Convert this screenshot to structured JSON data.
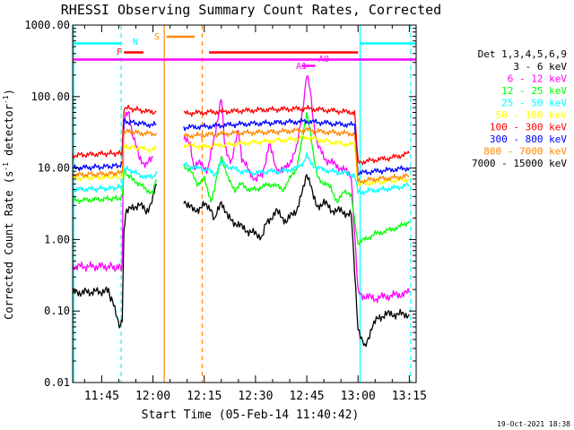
{
  "chart_data": {
    "type": "line",
    "title": "RHESSI Observing Summary Count Rates, Corrected",
    "xlabel": "Start Time (05-Feb-14 11:40:42)",
    "ylabel": "Corrected Count Rate (s",
    "ylabel_sup": "-1",
    "ylabel_tail": " detector",
    "ylabel_sup2": "-1",
    "ylabel_end": ")",
    "y_scale": "log",
    "ylim": [
      0.01,
      1000
    ],
    "xlim_minutes": [
      -3.5,
      97
    ],
    "x_ticks": [
      {
        "label": "11:45",
        "m": 5
      },
      {
        "label": "12:00",
        "m": 20
      },
      {
        "label": "12:15",
        "m": 35
      },
      {
        "label": "12:30",
        "m": 50
      },
      {
        "label": "12:45",
        "m": 65
      },
      {
        "label": "13:00",
        "m": 80
      },
      {
        "label": "13:15",
        "m": 95
      }
    ],
    "y_ticks": [
      {
        "label": "0.01",
        "v": 0.01
      },
      {
        "label": "0.10",
        "v": 0.1
      },
      {
        "label": "1.00",
        "v": 1
      },
      {
        "label": "10.00",
        "v": 10
      },
      {
        "label": "100.00",
        "v": 100
      },
      {
        "label": "1000.00",
        "v": 1000
      }
    ],
    "legend_title": "Det 1,3,4,5,6,9",
    "legend_position": "right",
    "series": [
      {
        "name": "3 - 6 keV",
        "color": "#000000",
        "pts": [
          [
            -3.5,
            0.18
          ],
          [
            7,
            0.19
          ],
          [
            8.5,
            0.12
          ],
          [
            10.5,
            0.06
          ],
          [
            11,
            0.08
          ],
          [
            11.5,
            1.2
          ],
          [
            12,
            2.5
          ],
          [
            14,
            2.7
          ],
          [
            16,
            3.2
          ],
          [
            18,
            2.4
          ],
          [
            19,
            3.0
          ],
          [
            20,
            3.8
          ],
          [
            21,
            6
          ],
          [
            22,
            null
          ],
          [
            29,
            3.6
          ],
          [
            32,
            2.5
          ],
          [
            35,
            3.0
          ],
          [
            37,
            2.8
          ],
          [
            38,
            1.8
          ],
          [
            40,
            3.5
          ],
          [
            42,
            2.0
          ],
          [
            45,
            1.6
          ],
          [
            48,
            1.3
          ],
          [
            50,
            1.2
          ],
          [
            52,
            1.1
          ],
          [
            53,
            1.6
          ],
          [
            56,
            2.5
          ],
          [
            59,
            1.8
          ],
          [
            62,
            2.6
          ],
          [
            64,
            5
          ],
          [
            65,
            8.5
          ],
          [
            66,
            6.5
          ],
          [
            67,
            3.8
          ],
          [
            68,
            2.8
          ],
          [
            70,
            3.4
          ],
          [
            72,
            2.6
          ],
          [
            75,
            2.5
          ],
          [
            78,
            2.2
          ],
          [
            80,
            0.06
          ],
          [
            81,
            0.04
          ],
          [
            82,
            0.03
          ],
          [
            84,
            0.06
          ],
          [
            86,
            0.08
          ],
          [
            88,
            0.09
          ],
          [
            92,
            0.09
          ],
          [
            95,
            0.09
          ]
        ]
      },
      {
        "name": "6 - 12 keV",
        "color": "#ff00ff",
        "pts": [
          [
            -3.5,
            0.42
          ],
          [
            7,
            0.42
          ],
          [
            10.5,
            0.4
          ],
          [
            11,
            0.45
          ],
          [
            11.5,
            50
          ],
          [
            13,
            60
          ],
          [
            14,
            30
          ],
          [
            16,
            14
          ],
          [
            18,
            11
          ],
          [
            20,
            14
          ],
          [
            22,
            null
          ],
          [
            29,
            25
          ],
          [
            31,
            22
          ],
          [
            32,
            10
          ],
          [
            34,
            12
          ],
          [
            36,
            9
          ],
          [
            38,
            28
          ],
          [
            40,
            95
          ],
          [
            41,
            20
          ],
          [
            43,
            12
          ],
          [
            45,
            35
          ],
          [
            46,
            14
          ],
          [
            48,
            9
          ],
          [
            50,
            7
          ],
          [
            52,
            8
          ],
          [
            54,
            22
          ],
          [
            56,
            10
          ],
          [
            58,
            9
          ],
          [
            60,
            12
          ],
          [
            62,
            18
          ],
          [
            64,
            80
          ],
          [
            65,
            200
          ],
          [
            66,
            120
          ],
          [
            67,
            45
          ],
          [
            68,
            22
          ],
          [
            70,
            14
          ],
          [
            72,
            12
          ],
          [
            75,
            10
          ],
          [
            78,
            8
          ],
          [
            80,
            0.18
          ],
          [
            82,
            0.16
          ],
          [
            85,
            0.15
          ],
          [
            88,
            0.16
          ],
          [
            92,
            0.17
          ],
          [
            95,
            0.18
          ]
        ]
      },
      {
        "name": "12 - 25 keV",
        "color": "#00ff00",
        "pts": [
          [
            -3.5,
            3.5
          ],
          [
            7,
            3.7
          ],
          [
            10.5,
            3.8
          ],
          [
            11,
            4.0
          ],
          [
            11.5,
            9
          ],
          [
            14,
            7
          ],
          [
            16,
            6
          ],
          [
            18,
            5
          ],
          [
            20,
            4.5
          ],
          [
            21,
            7
          ],
          [
            22,
            null
          ],
          [
            29,
            11
          ],
          [
            31,
            9
          ],
          [
            33,
            6
          ],
          [
            35,
            7
          ],
          [
            37,
            3.5
          ],
          [
            38,
            5
          ],
          [
            40,
            15
          ],
          [
            42,
            7
          ],
          [
            44,
            5
          ],
          [
            46,
            6
          ],
          [
            48,
            5
          ],
          [
            50,
            5
          ],
          [
            52,
            5.5
          ],
          [
            55,
            6
          ],
          [
            58,
            5
          ],
          [
            60,
            7
          ],
          [
            62,
            10
          ],
          [
            64,
            30
          ],
          [
            65,
            60
          ],
          [
            66,
            35
          ],
          [
            67,
            14
          ],
          [
            68,
            8
          ],
          [
            70,
            6
          ],
          [
            72,
            5.5
          ],
          [
            74,
            3.2
          ],
          [
            76,
            5
          ],
          [
            78,
            4
          ],
          [
            80,
            0.9
          ],
          [
            82,
            1.0
          ],
          [
            85,
            1.2
          ],
          [
            88,
            1.3
          ],
          [
            92,
            1.5
          ],
          [
            95,
            1.8
          ]
        ]
      },
      {
        "name": "25 - 50 keV",
        "color": "#00ffff",
        "pts": [
          [
            -3.5,
            5.0
          ],
          [
            7,
            5.2
          ],
          [
            10.5,
            5.4
          ],
          [
            11,
            5.6
          ],
          [
            11.5,
            10
          ],
          [
            14,
            9
          ],
          [
            16,
            8
          ],
          [
            18,
            7.5
          ],
          [
            20,
            7.5
          ],
          [
            21,
            9
          ],
          [
            22,
            null
          ],
          [
            29,
            11
          ],
          [
            33,
            10
          ],
          [
            36,
            9.5
          ],
          [
            38,
            8
          ],
          [
            40,
            12
          ],
          [
            43,
            10
          ],
          [
            46,
            9
          ],
          [
            50,
            8.5
          ],
          [
            54,
            9
          ],
          [
            58,
            9
          ],
          [
            62,
            10
          ],
          [
            64,
            12
          ],
          [
            65,
            15
          ],
          [
            66,
            12
          ],
          [
            68,
            10
          ],
          [
            72,
            9
          ],
          [
            76,
            8.5
          ],
          [
            79,
            8
          ],
          [
            80,
            4.5
          ],
          [
            83,
            4.8
          ],
          [
            87,
            5.0
          ],
          [
            91,
            5.3
          ],
          [
            95,
            5.8
          ]
        ]
      },
      {
        "name": "50 - 100 keV",
        "color": "#ffff00",
        "pts": [
          [
            -3.5,
            7.2
          ],
          [
            7,
            7.5
          ],
          [
            10.5,
            7.6
          ],
          [
            11,
            8
          ],
          [
            11.5,
            20
          ],
          [
            16,
            19
          ],
          [
            20,
            18
          ],
          [
            21,
            19
          ],
          [
            22,
            null
          ],
          [
            29,
            21
          ],
          [
            35,
            20
          ],
          [
            45,
            22
          ],
          [
            55,
            24
          ],
          [
            60,
            25
          ],
          [
            65,
            27
          ],
          [
            70,
            24
          ],
          [
            75,
            22
          ],
          [
            79,
            21
          ],
          [
            80,
            6.0
          ],
          [
            85,
            6.3
          ],
          [
            90,
            6.7
          ],
          [
            95,
            7.0
          ]
        ]
      },
      {
        "name": "100 - 300 keV",
        "color": "#ff0000",
        "pts": [
          [
            -3.5,
            15
          ],
          [
            7,
            16
          ],
          [
            10.5,
            16
          ],
          [
            11,
            17
          ],
          [
            11.5,
            70
          ],
          [
            16,
            65
          ],
          [
            20,
            60
          ],
          [
            21,
            62
          ],
          [
            22,
            null
          ],
          [
            29,
            58
          ],
          [
            35,
            60
          ],
          [
            45,
            63
          ],
          [
            55,
            66
          ],
          [
            60,
            67
          ],
          [
            65,
            68
          ],
          [
            70,
            65
          ],
          [
            75,
            62
          ],
          [
            79,
            60
          ],
          [
            80,
            12
          ],
          [
            85,
            13
          ],
          [
            90,
            14
          ],
          [
            95,
            16
          ]
        ]
      },
      {
        "name": "300 - 800 keV",
        "color": "#0000ff",
        "pts": [
          [
            -3.5,
            10
          ],
          [
            7,
            10.5
          ],
          [
            10.5,
            11
          ],
          [
            11,
            11.5
          ],
          [
            11.5,
            45
          ],
          [
            16,
            42
          ],
          [
            20,
            40
          ],
          [
            21,
            41
          ],
          [
            22,
            null
          ],
          [
            29,
            37
          ],
          [
            35,
            38
          ],
          [
            45,
            41
          ],
          [
            55,
            43
          ],
          [
            60,
            44
          ],
          [
            65,
            45
          ],
          [
            70,
            43
          ],
          [
            75,
            41
          ],
          [
            79,
            40
          ],
          [
            80,
            8.5
          ],
          [
            85,
            9
          ],
          [
            90,
            9.5
          ],
          [
            95,
            10
          ]
        ]
      },
      {
        "name": "800 - 7000 keV",
        "color": "#ff8800",
        "pts": [
          [
            -3.5,
            8
          ],
          [
            7,
            8.3
          ],
          [
            10.5,
            8.6
          ],
          [
            11,
            9
          ],
          [
            11.5,
            33
          ],
          [
            16,
            31
          ],
          [
            20,
            30
          ],
          [
            21,
            31
          ],
          [
            22,
            null
          ],
          [
            29,
            28
          ],
          [
            35,
            29
          ],
          [
            45,
            31
          ],
          [
            55,
            32
          ],
          [
            60,
            33
          ],
          [
            65,
            34
          ],
          [
            70,
            32
          ],
          [
            75,
            31
          ],
          [
            79,
            30
          ],
          [
            80,
            6.5
          ],
          [
            85,
            7
          ],
          [
            90,
            7.3
          ],
          [
            95,
            7.8
          ]
        ]
      },
      {
        "name": "7000 - 15000 keV",
        "color": "#ffffff",
        "pts": []
      }
    ],
    "annotations": [
      {
        "label": "F",
        "color": "#ff0000"
      },
      {
        "label": "N",
        "color": "#00ffff"
      },
      {
        "label": "S",
        "color": "#ff8800"
      },
      {
        "label": "A1",
        "color": "#ff00ff"
      },
      {
        "label": "A0",
        "color": "#ff00ff"
      }
    ],
    "footer_date": "19-Oct-2021 18:38"
  }
}
